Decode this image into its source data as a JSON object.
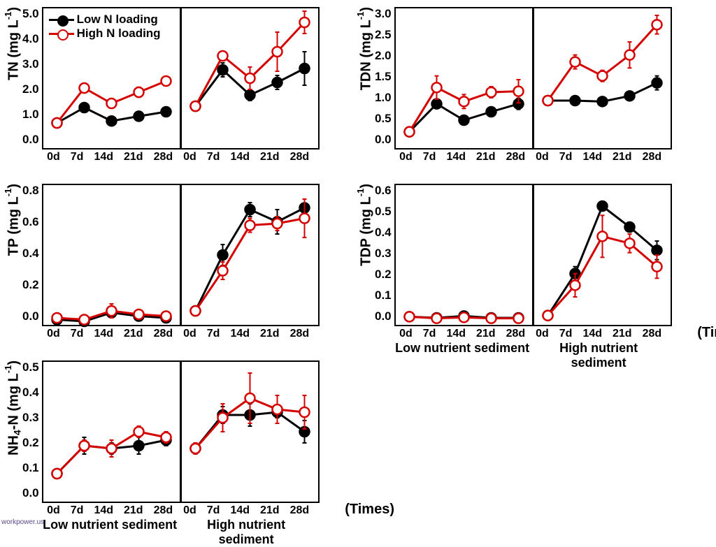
{
  "x_categories": [
    "0d",
    "7d",
    "14d",
    "21d",
    "28d"
  ],
  "x_section_labels": [
    "Low nutrient sediment",
    "High nutrient sediment"
  ],
  "times_label": "(Times)",
  "legend": {
    "low": {
      "label": "Low N loading",
      "color": "#000000",
      "fill": "#000000"
    },
    "high": {
      "label": "High N loading",
      "color": "#d50000",
      "fill": "#ffffff"
    }
  },
  "marker_radius": 7,
  "line_width": 3,
  "error_cap_width": 6,
  "axis_color": "#000000",
  "background_color": "#ffffff",
  "tick_fontsize": 17,
  "label_fontsize": 20,
  "panels": [
    {
      "id": "TN",
      "ylabel_parts": [
        "TN (mg L",
        "-1",
        ")"
      ],
      "ylim": [
        0,
        5
      ],
      "ytick_step": 1.0,
      "decimals": 1,
      "show_legend": true,
      "subplots": [
        {
          "low": {
            "y": [
              0.9,
              1.45,
              0.97,
              1.14,
              1.3
            ],
            "err": [
              0.04,
              0.1,
              0.06,
              0.06,
              0.07
            ]
          },
          "high": {
            "y": [
              0.9,
              2.15,
              1.6,
              2.0,
              2.4
            ],
            "err": [
              0.05,
              0.12,
              0.1,
              0.18,
              0.1
            ]
          }
        },
        {
          "low": {
            "y": [
              1.5,
              2.8,
              1.9,
              2.35,
              2.85
            ],
            "err": [
              0.08,
              0.25,
              0.2,
              0.25,
              0.6
            ]
          },
          "high": {
            "y": [
              1.5,
              3.3,
              2.5,
              3.45,
              4.5
            ],
            "err": [
              0.08,
              0.1,
              0.4,
              0.7,
              0.4
            ]
          }
        }
      ]
    },
    {
      "id": "TDN",
      "ylabel_parts": [
        "TDN (mg L",
        "-1",
        ")"
      ],
      "ylim": [
        0,
        3
      ],
      "ytick_step": 0.5,
      "decimals": 1,
      "subplots": [
        {
          "low": {
            "y": [
              0.35,
              0.95,
              0.6,
              0.78,
              0.95
            ],
            "err": [
              0.04,
              0.05,
              0.05,
              0.05,
              0.12
            ]
          },
          "high": {
            "y": [
              0.35,
              1.3,
              1.0,
              1.2,
              1.22
            ],
            "err": [
              0.05,
              0.25,
              0.15,
              0.12,
              0.25
            ]
          }
        },
        {
          "low": {
            "y": [
              1.02,
              1.02,
              1.0,
              1.12,
              1.4
            ],
            "err": [
              0.05,
              0.05,
              0.08,
              0.07,
              0.15
            ]
          },
          "high": {
            "y": [
              1.02,
              1.85,
              1.55,
              2.0,
              2.65
            ],
            "err": [
              0.05,
              0.15,
              0.12,
              0.28,
              0.2
            ]
          }
        }
      ]
    },
    {
      "id": "TP",
      "ylabel_parts": [
        "TP (mg L",
        "-1",
        ")"
      ],
      "ylim": [
        0,
        0.8
      ],
      "ytick_step": 0.2,
      "decimals": 1,
      "subplots": [
        {
          "low": {
            "y": [
              0.03,
              0.02,
              0.07,
              0.05,
              0.04
            ],
            "err": [
              0.005,
              0.005,
              0.01,
              0.01,
              0.01
            ]
          },
          "high": {
            "y": [
              0.04,
              0.03,
              0.08,
              0.06,
              0.05
            ],
            "err": [
              0.005,
              0.005,
              0.04,
              0.01,
              0.01
            ]
          }
        },
        {
          "low": {
            "y": [
              0.08,
              0.4,
              0.66,
              0.59,
              0.67
            ],
            "err": [
              0.01,
              0.06,
              0.04,
              0.07,
              0.05
            ]
          },
          "high": {
            "y": [
              0.08,
              0.31,
              0.57,
              0.58,
              0.61
            ],
            "err": [
              0.01,
              0.05,
              0.04,
              0.04,
              0.11
            ]
          }
        }
      ]
    },
    {
      "id": "TDP",
      "ylabel_parts": [
        "TDP (mg L",
        "-1",
        ")"
      ],
      "ylim": [
        0,
        0.6
      ],
      "ytick_step": 0.1,
      "decimals": 1,
      "show_x_labels": true,
      "subplots": [
        {
          "low": {
            "y": [
              0.035,
              0.03,
              0.038,
              0.03,
              0.03
            ],
            "err": [
              0.005,
              0.005,
              0.005,
              0.005,
              0.005
            ]
          },
          "high": {
            "y": [
              0.035,
              0.028,
              0.032,
              0.028,
              0.028
            ],
            "err": [
              0.005,
              0.005,
              0.005,
              0.005,
              0.005
            ]
          }
        },
        {
          "low": {
            "y": [
              0.04,
              0.22,
              0.51,
              0.42,
              0.32
            ],
            "err": [
              0.005,
              0.03,
              0.01,
              0.02,
              0.04
            ]
          },
          "high": {
            "y": [
              0.04,
              0.17,
              0.38,
              0.35,
              0.25
            ],
            "err": [
              0.005,
              0.05,
              0.09,
              0.04,
              0.05
            ]
          }
        }
      ]
    },
    {
      "id": "NH4N",
      "ylabel_parts": [
        "NH",
        "4",
        "-N (mg L",
        "-1",
        ")"
      ],
      "ylim": [
        0,
        0.5
      ],
      "ytick_step": 0.1,
      "decimals": 1,
      "show_x_labels": true,
      "subplots": [
        {
          "low": {
            "y": [
              0.1,
              0.2,
              0.19,
              0.2,
              0.22
            ],
            "err": [
              0.01,
              0.03,
              0.02,
              0.03,
              0.02
            ]
          },
          "high": {
            "y": [
              0.1,
              0.2,
              0.19,
              0.25,
              0.23
            ],
            "err": [
              0.01,
              0.02,
              0.03,
              0.02,
              0.02
            ]
          }
        },
        {
          "low": {
            "y": [
              0.19,
              0.31,
              0.31,
              0.32,
              0.25
            ],
            "err": [
              0.02,
              0.03,
              0.04,
              0.02,
              0.04
            ]
          },
          "high": {
            "y": [
              0.19,
              0.3,
              0.37,
              0.33,
              0.32
            ],
            "err": [
              0.02,
              0.05,
              0.09,
              0.05,
              0.06
            ]
          }
        }
      ]
    }
  ],
  "watermark": "workpower.us"
}
